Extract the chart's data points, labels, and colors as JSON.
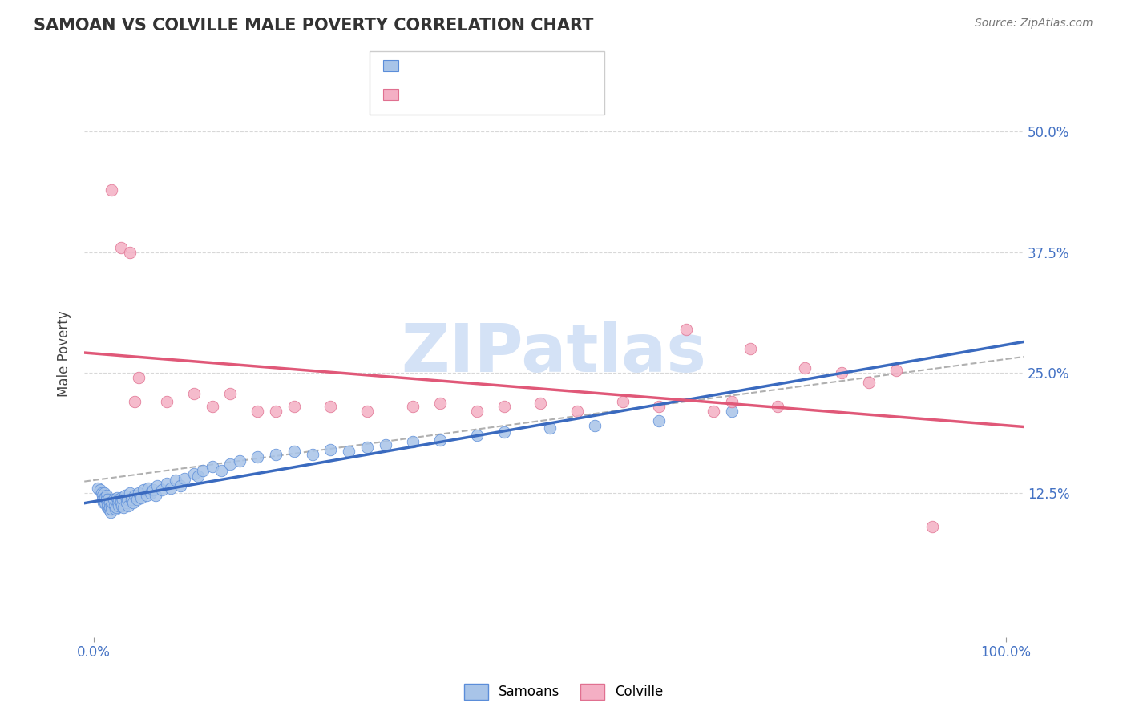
{
  "title": "SAMOAN VS COLVILLE MALE POVERTY CORRELATION CHART",
  "source": "Source: ZipAtlas.com",
  "ylabel": "Male Poverty",
  "legend_samoan": "Samoans",
  "legend_colville": "Colville",
  "samoan_color": "#a8c4e8",
  "colville_color": "#f4afc4",
  "samoan_edge_color": "#5b8dd9",
  "colville_edge_color": "#e07090",
  "samoan_line_color": "#3a6abf",
  "colville_line_color": "#e05878",
  "trend_line_color": "#b0b0b0",
  "background_color": "#ffffff",
  "ytick_color": "#4472c4",
  "xtick_color": "#4472c4",
  "grid_color": "#d8d8d8",
  "watermark": "ZIPatlas",
  "watermark_color": "#d0dff5",
  "samoan_x": [
    0.005,
    0.007,
    0.009,
    0.01,
    0.01,
    0.011,
    0.012,
    0.012,
    0.013,
    0.013,
    0.014,
    0.014,
    0.015,
    0.015,
    0.016,
    0.016,
    0.017,
    0.018,
    0.018,
    0.019,
    0.02,
    0.02,
    0.021,
    0.022,
    0.023,
    0.024,
    0.025,
    0.025,
    0.026,
    0.027,
    0.028,
    0.028,
    0.03,
    0.03,
    0.031,
    0.032,
    0.033,
    0.035,
    0.036,
    0.037,
    0.038,
    0.04,
    0.042,
    0.043,
    0.045,
    0.048,
    0.05,
    0.052,
    0.055,
    0.058,
    0.06,
    0.063,
    0.065,
    0.068,
    0.07,
    0.075,
    0.08,
    0.085,
    0.09,
    0.095,
    0.1,
    0.11,
    0.115,
    0.12,
    0.13,
    0.14,
    0.15,
    0.16,
    0.18,
    0.2,
    0.22,
    0.24,
    0.26,
    0.28,
    0.3,
    0.32,
    0.35,
    0.38,
    0.42,
    0.45,
    0.5,
    0.55,
    0.62,
    0.7
  ],
  "samoan_y": [
    0.13,
    0.128,
    0.125,
    0.122,
    0.118,
    0.115,
    0.125,
    0.12,
    0.115,
    0.12,
    0.122,
    0.118,
    0.115,
    0.11,
    0.118,
    0.112,
    0.108,
    0.115,
    0.11,
    0.105,
    0.112,
    0.108,
    0.115,
    0.118,
    0.112,
    0.108,
    0.115,
    0.11,
    0.12,
    0.115,
    0.112,
    0.118,
    0.12,
    0.115,
    0.112,
    0.118,
    0.11,
    0.122,
    0.115,
    0.118,
    0.112,
    0.125,
    0.118,
    0.115,
    0.122,
    0.118,
    0.125,
    0.12,
    0.128,
    0.122,
    0.13,
    0.125,
    0.128,
    0.122,
    0.132,
    0.128,
    0.135,
    0.13,
    0.138,
    0.132,
    0.14,
    0.145,
    0.142,
    0.148,
    0.152,
    0.148,
    0.155,
    0.158,
    0.162,
    0.165,
    0.168,
    0.165,
    0.17,
    0.168,
    0.172,
    0.175,
    0.178,
    0.18,
    0.185,
    0.188,
    0.192,
    0.195,
    0.2,
    0.21
  ],
  "colville_x": [
    0.02,
    0.03,
    0.04,
    0.045,
    0.05,
    0.08,
    0.11,
    0.13,
    0.15,
    0.18,
    0.2,
    0.22,
    0.26,
    0.3,
    0.35,
    0.38,
    0.42,
    0.45,
    0.49,
    0.53,
    0.58,
    0.62,
    0.65,
    0.68,
    0.7,
    0.72,
    0.75,
    0.78,
    0.82,
    0.85,
    0.88,
    0.92
  ],
  "colville_y": [
    0.44,
    0.38,
    0.375,
    0.22,
    0.245,
    0.22,
    0.228,
    0.215,
    0.228,
    0.21,
    0.21,
    0.215,
    0.215,
    0.21,
    0.215,
    0.218,
    0.21,
    0.215,
    0.218,
    0.21,
    0.22,
    0.215,
    0.295,
    0.21,
    0.22,
    0.275,
    0.215,
    0.255,
    0.25,
    0.24,
    0.252,
    0.09
  ],
  "xlim": [
    -0.01,
    1.02
  ],
  "ylim": [
    -0.025,
    0.565
  ],
  "yticks": [
    0.125,
    0.25,
    0.375,
    0.5
  ],
  "ytick_labels": [
    "12.5%",
    "25.0%",
    "37.5%",
    "50.0%"
  ]
}
